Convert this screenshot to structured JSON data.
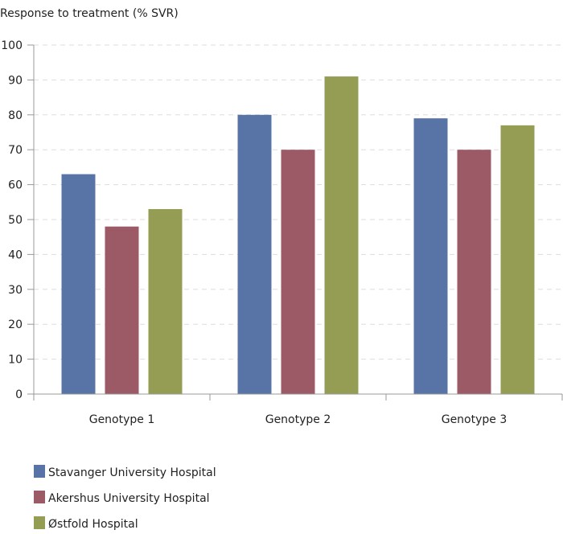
{
  "chart_data": {
    "type": "bar",
    "title": "Response to treatment (% SVR)",
    "xlabel": "",
    "ylabel": "",
    "ylim": [
      0,
      100
    ],
    "yticks": [
      0,
      10,
      20,
      30,
      40,
      50,
      60,
      70,
      80,
      90,
      100
    ],
    "grid": true,
    "legend_position": "bottom-left",
    "categories": [
      "Genotype 1",
      "Genotype 2",
      "Genotype 3"
    ],
    "series": [
      {
        "name": "Stavanger University Hospital",
        "color": "#5874a6",
        "values": [
          63,
          80,
          79
        ]
      },
      {
        "name": "Akershus University Hospital",
        "color": "#9c5966",
        "values": [
          48,
          70,
          70
        ]
      },
      {
        "name": "Østfold Hospital",
        "color": "#959d55",
        "values": [
          53,
          91,
          77
        ]
      }
    ]
  }
}
